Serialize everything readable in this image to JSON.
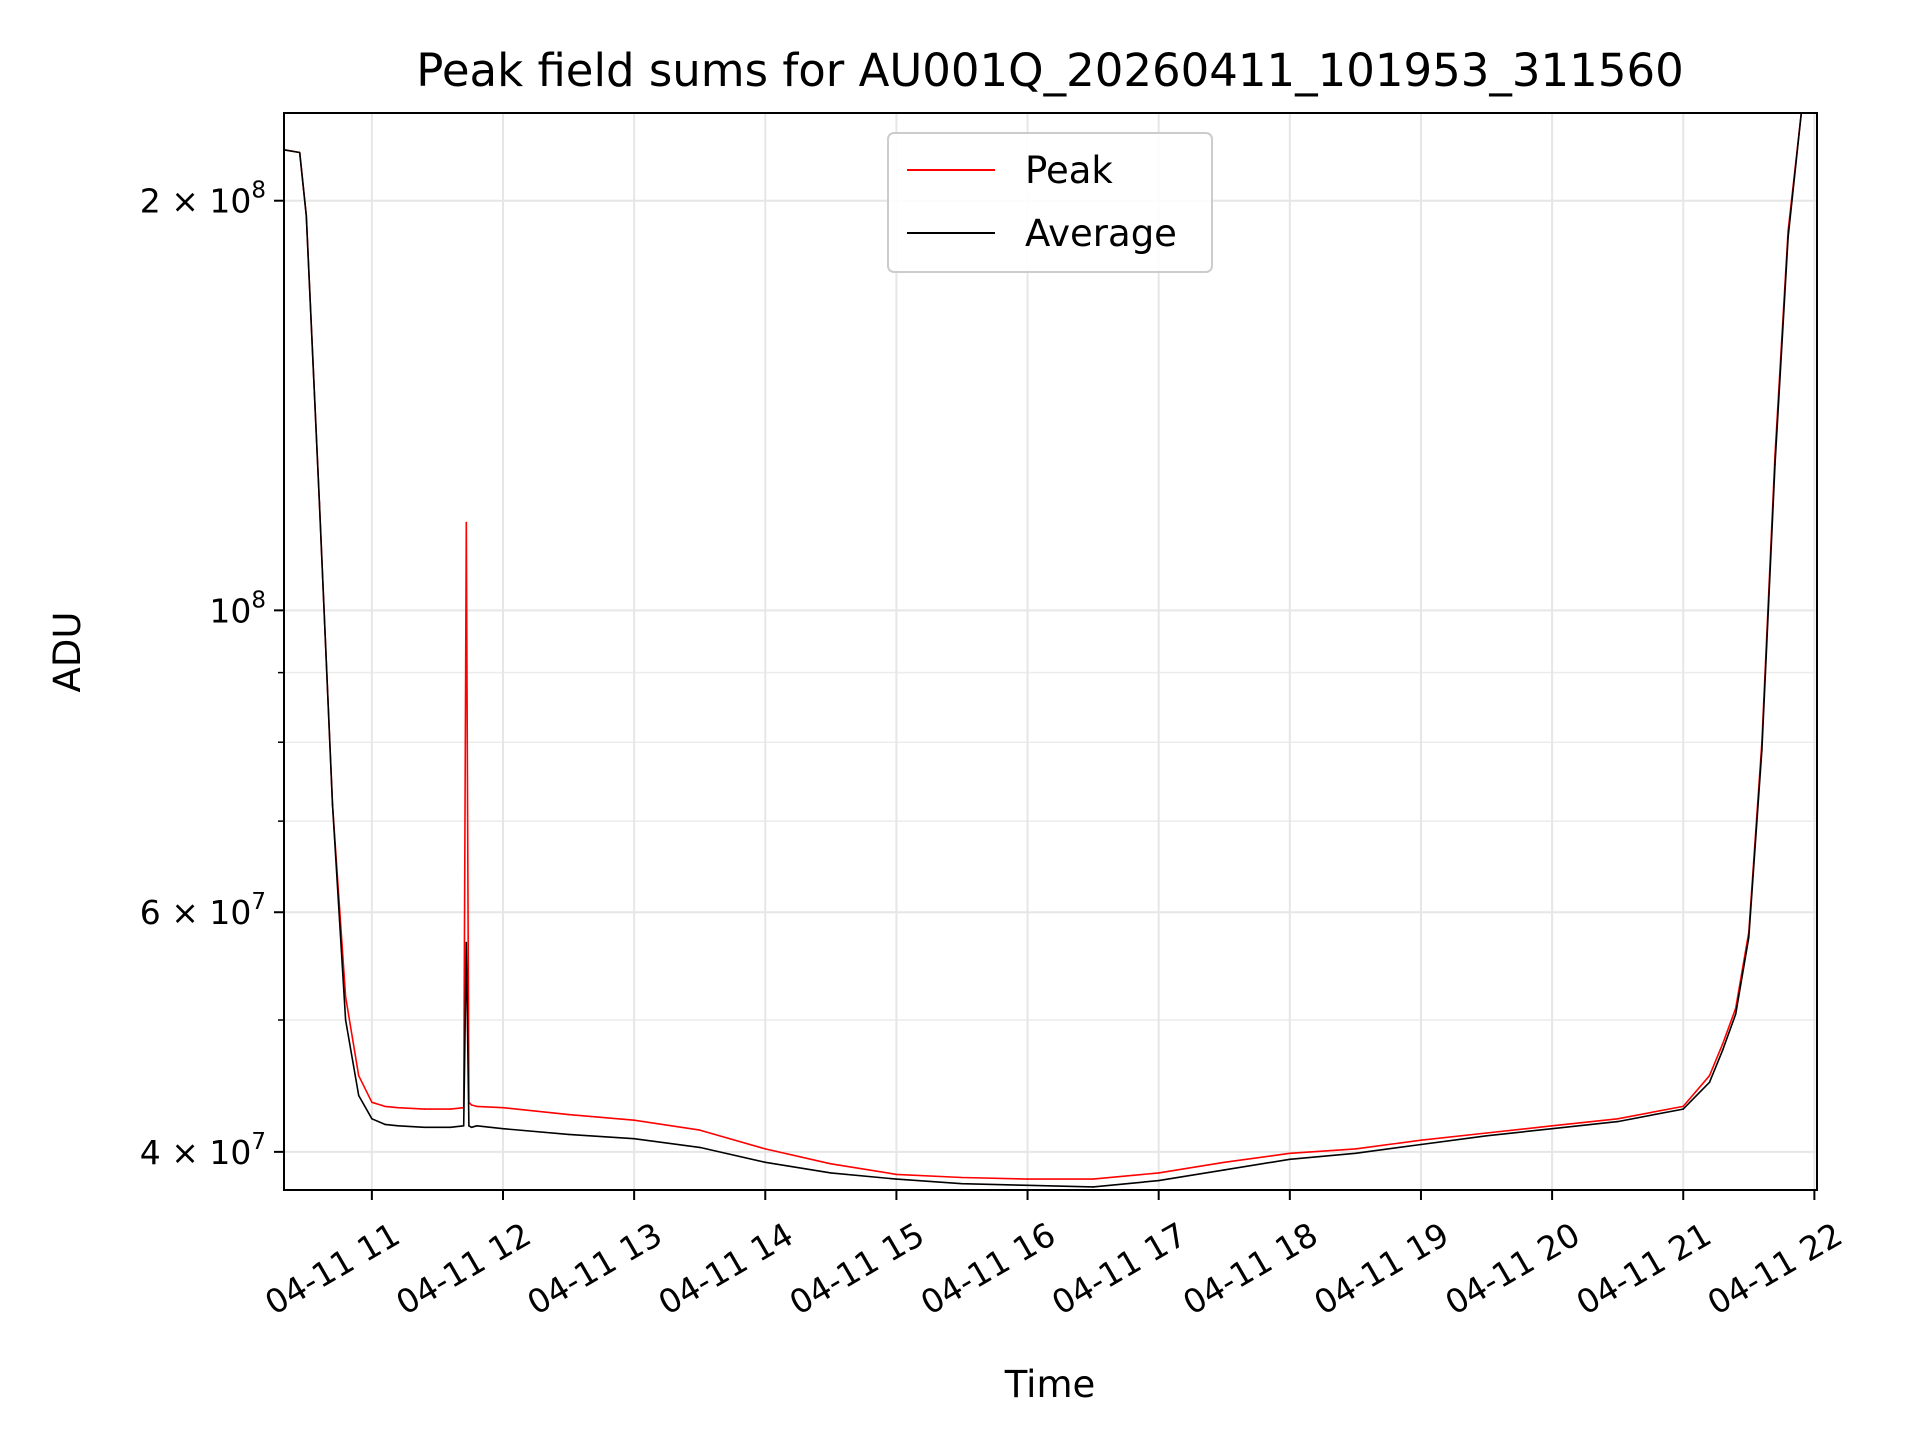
{
  "chart_data": {
    "type": "line",
    "title": "Peak field sums for AU001Q_20260411_101953_311560",
    "xlabel": "Time",
    "ylabel": "ADU",
    "yscale": "log",
    "xlim_hours": [
      10.33,
      22.02
    ],
    "ylim": [
      37500000,
      232000000
    ],
    "grid": true,
    "legend_position": "upper center",
    "x_ticks": [
      {
        "hour": 11,
        "label": "04-11 11"
      },
      {
        "hour": 12,
        "label": "04-11 12"
      },
      {
        "hour": 13,
        "label": "04-11 13"
      },
      {
        "hour": 14,
        "label": "04-11 14"
      },
      {
        "hour": 15,
        "label": "04-11 15"
      },
      {
        "hour": 16,
        "label": "04-11 16"
      },
      {
        "hour": 17,
        "label": "04-11 17"
      },
      {
        "hour": 18,
        "label": "04-11 18"
      },
      {
        "hour": 19,
        "label": "04-11 19"
      },
      {
        "hour": 20,
        "label": "04-11 20"
      },
      {
        "hour": 21,
        "label": "04-11 21"
      },
      {
        "hour": 22,
        "label": "04-11 22"
      }
    ],
    "y_major_ticks": [
      {
        "value": 40000000,
        "base": "4",
        "exp": "7"
      },
      {
        "value": 60000000,
        "base": "6",
        "exp": "7"
      },
      {
        "value": 100000000,
        "base": "",
        "exp": "8"
      },
      {
        "value": 200000000,
        "base": "2",
        "exp": "8"
      }
    ],
    "y_minor_ticks": [
      50000000,
      70000000,
      80000000,
      90000000
    ],
    "series": [
      {
        "name": "Peak",
        "color": "#ff0000",
        "x_hours": [
          10.33,
          10.45,
          10.5,
          10.6,
          10.7,
          10.8,
          10.9,
          11.0,
          11.1,
          11.2,
          11.4,
          11.6,
          11.7,
          11.72,
          11.74,
          11.76,
          11.8,
          12.0,
          12.5,
          13.0,
          13.5,
          14.0,
          14.5,
          15.0,
          15.5,
          16.0,
          16.5,
          17.0,
          17.5,
          18.0,
          18.5,
          19.0,
          19.5,
          20.0,
          20.5,
          21.0,
          21.2,
          21.3,
          21.4,
          21.5,
          21.6,
          21.7,
          21.8,
          21.9,
          22.02
        ],
        "values": [
          218000000,
          217000000,
          195000000,
          120000000,
          72000000,
          52000000,
          45500000,
          43500000,
          43200000,
          43100000,
          43000000,
          43000000,
          43100000,
          116000000,
          43500000,
          43300000,
          43200000,
          43100000,
          42600000,
          42200000,
          41500000,
          40200000,
          39200000,
          38500000,
          38300000,
          38200000,
          38200000,
          38600000,
          39300000,
          39900000,
          40200000,
          40800000,
          41300000,
          41800000,
          42300000,
          43200000,
          45500000,
          48000000,
          51000000,
          58000000,
          80000000,
          130000000,
          190000000,
          232000000,
          232000000
        ]
      },
      {
        "name": "Average",
        "color": "#000000",
        "x_hours": [
          10.33,
          10.45,
          10.5,
          10.6,
          10.7,
          10.8,
          10.9,
          11.0,
          11.1,
          11.2,
          11.4,
          11.6,
          11.7,
          11.72,
          11.74,
          11.76,
          11.8,
          12.0,
          12.5,
          13.0,
          13.5,
          14.0,
          14.5,
          15.0,
          15.5,
          16.0,
          16.5,
          17.0,
          17.5,
          18.0,
          18.5,
          19.0,
          19.5,
          20.0,
          20.5,
          21.0,
          21.2,
          21.3,
          21.4,
          21.5,
          21.6,
          21.7,
          21.8,
          21.9,
          22.02
        ],
        "values": [
          218000000,
          217000000,
          195000000,
          120000000,
          72000000,
          50000000,
          44000000,
          42300000,
          41900000,
          41800000,
          41700000,
          41700000,
          41800000,
          57000000,
          41800000,
          41700000,
          41800000,
          41600000,
          41200000,
          40900000,
          40300000,
          39300000,
          38600000,
          38200000,
          37900000,
          37800000,
          37700000,
          38100000,
          38800000,
          39500000,
          39900000,
          40500000,
          41100000,
          41600000,
          42100000,
          43000000,
          45000000,
          47500000,
          50500000,
          57500000,
          79000000,
          128000000,
          188000000,
          232000000,
          232000000
        ]
      }
    ]
  }
}
